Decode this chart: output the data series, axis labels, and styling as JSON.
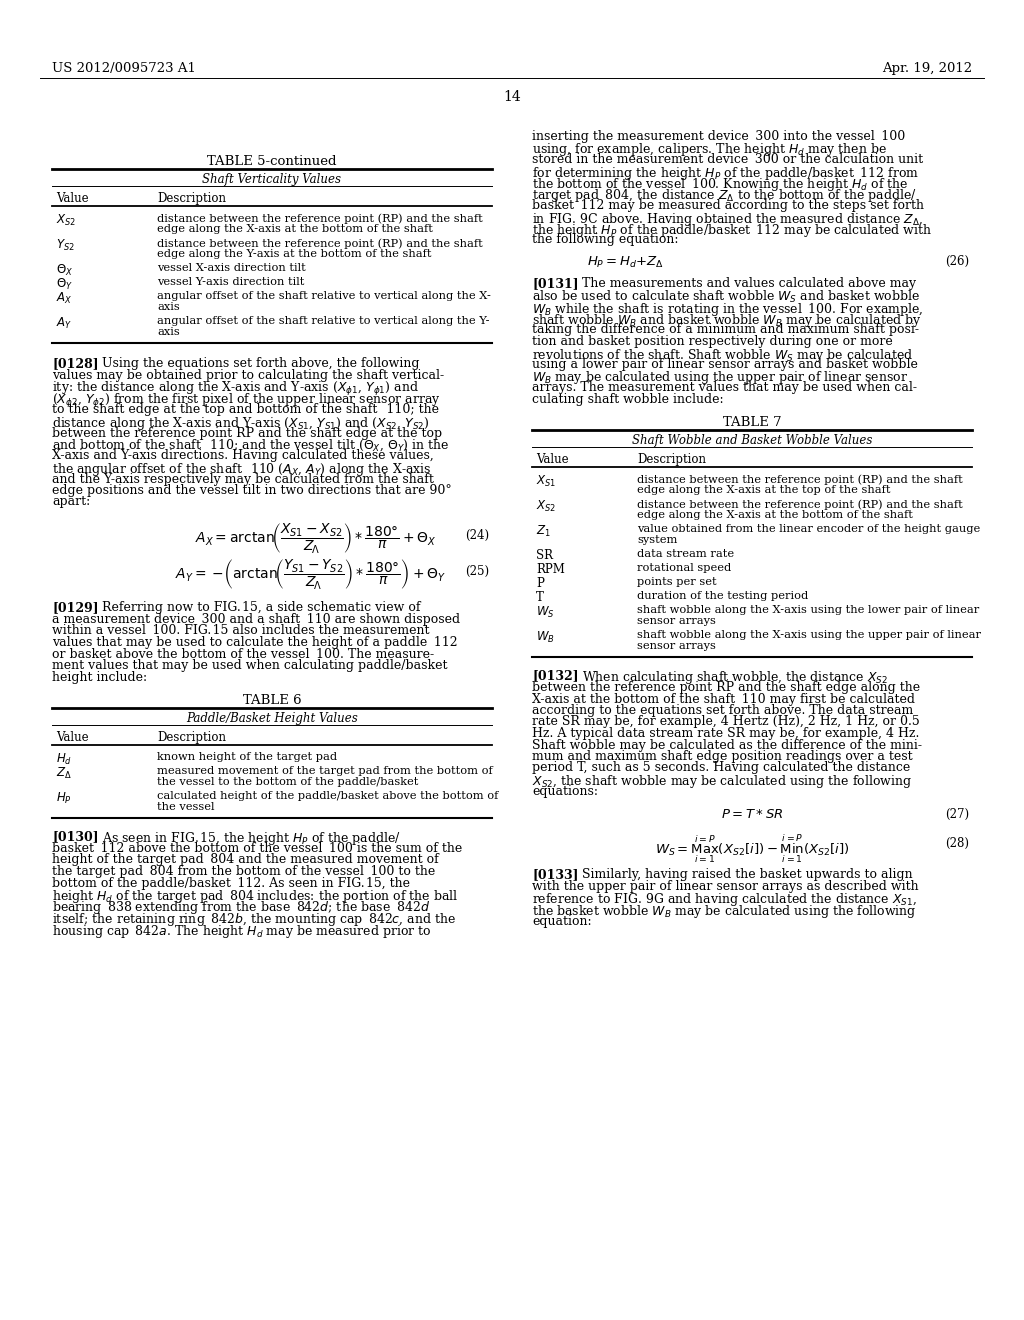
{
  "page_num": "14",
  "patent_num": "US 2012/0095723 A1",
  "patent_date": "Apr. 19, 2012",
  "bg_color": "#ffffff"
}
